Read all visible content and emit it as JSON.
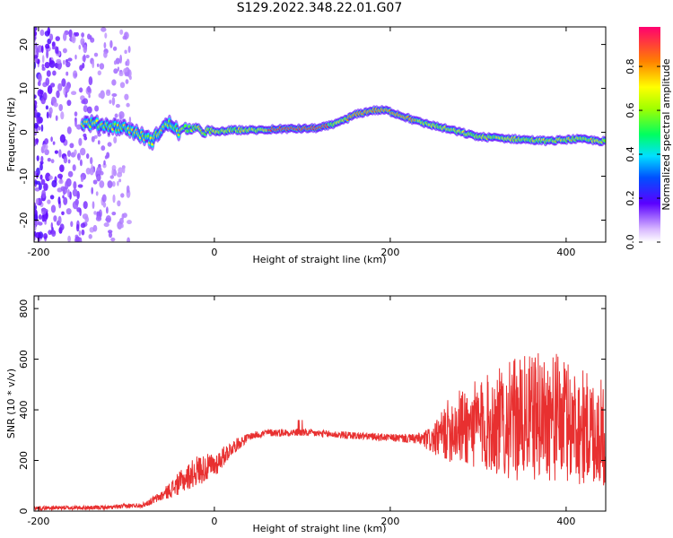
{
  "title": "S129.2022.348.22.01.G07",
  "chart_data": [
    {
      "type": "heatmap",
      "xlabel": "Height of straight line (km)",
      "ylabel": "Frequency (Hz)",
      "xlim": [
        -205,
        445
      ],
      "ylim": [
        -25,
        24
      ],
      "xticks": [
        -200,
        0,
        200,
        400
      ],
      "yticks": [
        20,
        10,
        0,
        -10,
        -20
      ],
      "ridge": {
        "x": [
          -140,
          -120,
          -100,
          -90,
          -80,
          -70,
          -60,
          -50,
          -40,
          -30,
          -20,
          0,
          20,
          50,
          80,
          100,
          120,
          140,
          160,
          180,
          195,
          210,
          230,
          260,
          300,
          340,
          380,
          410,
          440
        ],
        "y": [
          2,
          1.5,
          1,
          0,
          -1,
          -2,
          1,
          2,
          0,
          1,
          0.5,
          0,
          0.5,
          0.5,
          0.8,
          0.8,
          1,
          2,
          4,
          5,
          5,
          4,
          2.5,
          1,
          -1,
          -1.5,
          -2,
          -1.5,
          -2
        ]
      },
      "colorbar": {
        "label": "Normalized spectral amplitude",
        "ticks": [
          "0.0",
          "0.2",
          "0.4",
          "0.6",
          "0.8"
        ],
        "range": [
          0,
          1
        ]
      }
    },
    {
      "type": "line",
      "xlabel": "Height of straight line (km)",
      "ylabel": "SNR (10 * v/v)",
      "xlim": [
        -205,
        445
      ],
      "ylim": [
        0,
        850
      ],
      "xticks": [
        -200,
        0,
        200,
        400
      ],
      "yticks": [
        0,
        200,
        400,
        600,
        800
      ],
      "color": "#e83030",
      "envelope": {
        "x": [
          -205,
          -120,
          -80,
          -60,
          -40,
          -20,
          0,
          20,
          40,
          60,
          100,
          150,
          200,
          230,
          250,
          270,
          300,
          340,
          380,
          420,
          445
        ],
        "mean": [
          12,
          14,
          25,
          60,
          110,
          160,
          180,
          250,
          295,
          310,
          310,
          300,
          290,
          285,
          280,
          330,
          340,
          360,
          380,
          330,
          300
        ],
        "amp": [
          8,
          8,
          10,
          20,
          45,
          60,
          50,
          30,
          15,
          15,
          15,
          15,
          15,
          20,
          60,
          140,
          180,
          240,
          260,
          230,
          210
        ]
      }
    }
  ]
}
